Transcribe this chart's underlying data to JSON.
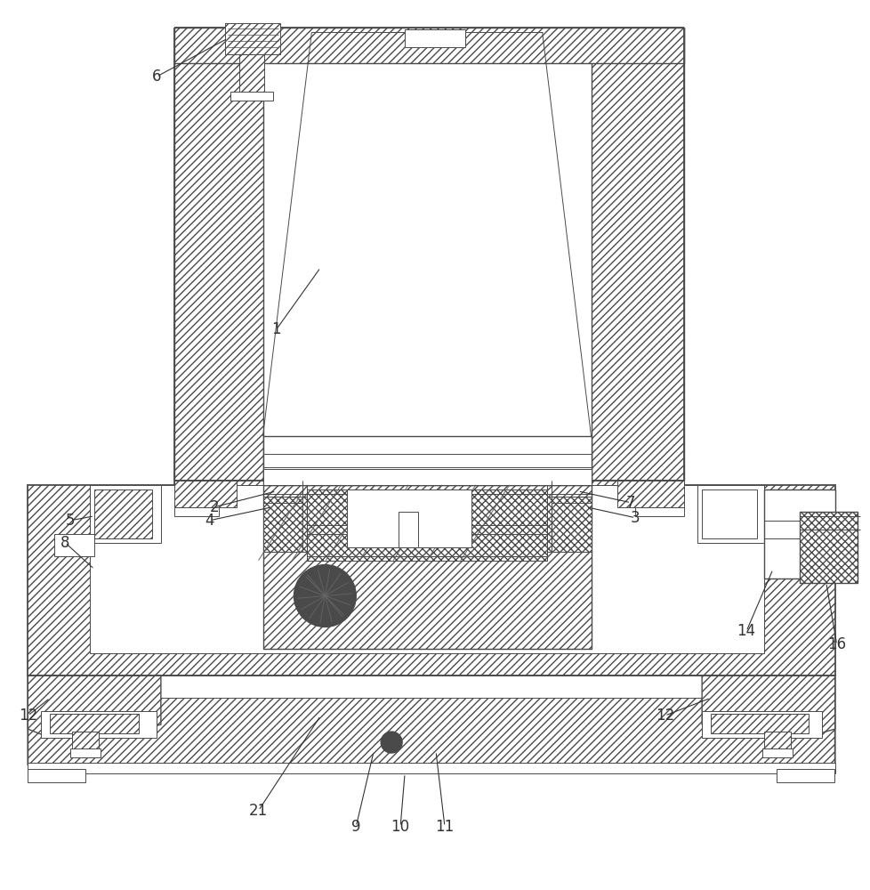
{
  "bg_color": "#ffffff",
  "line_color": "#4a4a4a",
  "label_color": "#333333",
  "fig_width": 9.79,
  "fig_height": 10.0,
  "lw_main": 1.3,
  "lw_thin": 0.7,
  "lw_med": 1.0,
  "label_fs": 12
}
